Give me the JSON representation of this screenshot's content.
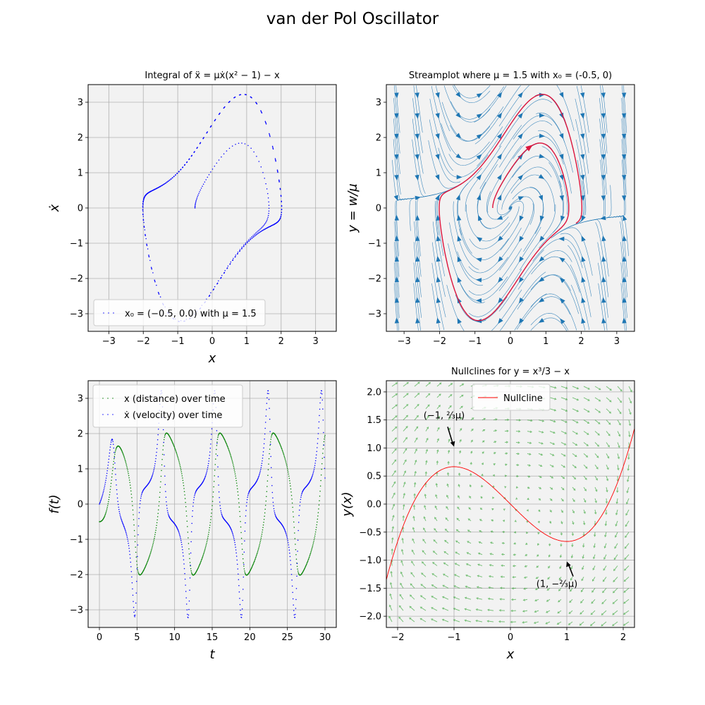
{
  "figure": {
    "title": "van der Pol Oscillator"
  },
  "chart_data": [
    {
      "id": "integral",
      "type": "scatter",
      "title": "Integral of ẍ = μẋ(x² − 1) − x",
      "xlabel": "x",
      "ylabel": "ẋ",
      "xlim": [
        -3.6,
        3.6
      ],
      "ylim": [
        -3.5,
        3.5
      ],
      "xticks": [
        -3,
        -2,
        -1,
        0,
        1,
        2,
        3
      ],
      "yticks": [
        -3,
        -2,
        -1,
        0,
        1,
        2,
        3
      ],
      "grid": true,
      "legend": {
        "position": "lower-left",
        "entries": [
          "x₀ = (−0.5, 0.0) with μ = 1.5"
        ]
      },
      "series": [
        {
          "name": "x₀ = (−0.5, 0.0) with μ = 1.5",
          "color": "#0000ff",
          "marker": "dot",
          "model": {
            "mu": 1.5,
            "x0": [
              -0.5,
              0.0
            ],
            "t_end": 30,
            "samples": 600
          }
        }
      ]
    },
    {
      "id": "streamplot",
      "type": "streamplot",
      "title": "Streamplot where μ = 1.5 with x₀ = (-0.5, 0)",
      "xlabel": "",
      "ylabel": "y = w/μ",
      "xlim": [
        -3.5,
        3.5
      ],
      "ylim": [
        -3.5,
        3.5
      ],
      "xticks": [
        -3,
        -2,
        -1,
        0,
        1,
        2,
        3
      ],
      "yticks": [
        -3,
        -2,
        -1,
        0,
        1,
        2,
        3
      ],
      "grid": false,
      "stream_color": "#1f77b4",
      "trajectory_color": "#dc143c",
      "model": {
        "mu": 1.5,
        "x0": [
          -0.5,
          0.0
        ],
        "t_end": 9.5
      }
    },
    {
      "id": "timeseries",
      "type": "scatter",
      "title": "",
      "xlabel": "t",
      "ylabel": "f(t)",
      "xlim": [
        -1.5,
        31.5
      ],
      "ylim": [
        -3.5,
        3.5
      ],
      "xticks": [
        0,
        5,
        10,
        15,
        20,
        25,
        30
      ],
      "yticks": [
        -3,
        -2,
        -1,
        0,
        1,
        2,
        3
      ],
      "grid": true,
      "legend": {
        "position": "top-left",
        "entries": [
          "x (distance) over time",
          "ẋ (velocity) over time"
        ]
      },
      "series": [
        {
          "name": "x (distance) over time",
          "color": "#008000",
          "marker": "dot"
        },
        {
          "name": "ẋ (velocity) over time",
          "color": "#0000ff",
          "marker": "dot"
        }
      ],
      "model": {
        "mu": 1.5,
        "x0": [
          -0.5,
          0.0
        ],
        "t_end": 30,
        "samples": 600
      }
    },
    {
      "id": "nullclines",
      "type": "line",
      "title": "Nullclines for y = x³/3 − x",
      "xlabel": "x",
      "ylabel": "y(x)",
      "xlim": [
        -2.2,
        2.2
      ],
      "ylim": [
        -2.2,
        2.2
      ],
      "xticks": [
        -2,
        -1,
        0,
        1,
        2
      ],
      "yticks": [
        -2.0,
        -1.5,
        -1.0,
        -0.5,
        0.0,
        0.5,
        1.0,
        1.5,
        2.0
      ],
      "grid": true,
      "legend": {
        "position": "top-center",
        "entries": [
          "Nullcline"
        ]
      },
      "series": [
        {
          "name": "Nullcline",
          "color": "#ff0000",
          "function": "x^3/3 - x"
        }
      ],
      "quiver_color": "#2ca02c",
      "annotations": [
        {
          "text": "(−1, ⅔μ)",
          "point": [
            -1,
            1
          ]
        },
        {
          "text": "(1, −⅔μ)",
          "point": [
            1,
            -1
          ]
        }
      ]
    }
  ]
}
